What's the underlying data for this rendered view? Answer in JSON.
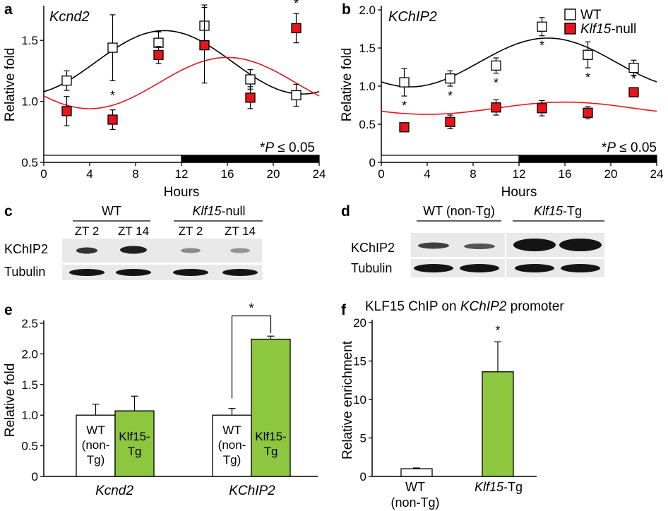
{
  "colors": {
    "wt_fill": "#ffffff",
    "null_fill": "#e8141c",
    "wt_curve": "#000000",
    "null_curve": "#e8141c",
    "tg_bar": "#8dc63f",
    "blot_band": "#141414"
  },
  "panel_a": {
    "label": "a",
    "gene": "Kcnd2",
    "ylabel": "Relative fold",
    "xlabel": "Hours",
    "pvalue_text": "*P ≤ 0.05",
    "pvalue_prefix": "*",
    "pvalue_italic": "P",
    "pvalue_rest": " ≤ 0.05",
    "star": "*"
  },
  "panel_b": {
    "label": "b",
    "gene": "KChIP2",
    "ylabel": "Relative fold",
    "xlabel": "Hours",
    "legend_wt": "WT",
    "legend_null_italic": "Klf15",
    "legend_null_rest": "-null",
    "pvalue_prefix": "*",
    "pvalue_italic": "P",
    "pvalue_rest": " ≤ 0.05",
    "star": "*"
  },
  "panel_c": {
    "label": "c",
    "group_wt": "WT",
    "group_null_italic": "Klf15",
    "group_null_rest": "-null",
    "lanes": [
      "ZT 2",
      "ZT 14",
      "ZT 2",
      "ZT 14"
    ],
    "row1": "KChIP2",
    "row2": "Tubulin"
  },
  "panel_d": {
    "label": "d",
    "group_wt": "WT (non-Tg)",
    "group_tg_italic": "Klf15",
    "group_tg_rest": "-Tg",
    "row1": "KChIP2",
    "row2": "Tubulin"
  },
  "panel_e": {
    "label": "e",
    "ylabel": "Relative fold",
    "group1": "Kcnd2",
    "group2": "KChIP2",
    "bar_wt_lines": [
      "WT",
      "(non-",
      "Tg)"
    ],
    "bar_tg_lines": [
      "Klf15-",
      "Tg"
    ],
    "star": "*"
  },
  "panel_f": {
    "label": "f",
    "title_prefix": "KLF15 ChIP on ",
    "title_italic": "KChIP2",
    "title_suffix": " promoter",
    "ylabel": "Relative enrichment",
    "cat1_line1": "WT",
    "cat1_line2": "(non-Tg)",
    "cat2_italic": "Klf15",
    "cat2_rest": "-Tg",
    "star": "*"
  },
  "chart_data": [
    {
      "id": "a",
      "type": "scatter",
      "title": "Kcnd2",
      "xlabel": "Hours",
      "ylabel": "Relative fold",
      "xlim": [
        0,
        24
      ],
      "ylim": [
        0.5,
        1.75
      ],
      "xticks": [
        0,
        4,
        8,
        12,
        16,
        20,
        24
      ],
      "yticks": [
        0.5,
        1.0,
        1.5
      ],
      "ytick_labels": [
        "0.5",
        "1.0",
        "1.5"
      ],
      "grid": false,
      "light_dark_bar": {
        "light": [
          0,
          12
        ],
        "dark": [
          12,
          24
        ]
      },
      "x": [
        2,
        6,
        10,
        14,
        18,
        22
      ],
      "series": [
        {
          "name": "WT",
          "values": [
            1.17,
            1.44,
            1.48,
            1.62,
            1.18,
            1.05
          ],
          "errors": [
            0.08,
            0.27,
            0.09,
            0.17,
            0.08,
            0.09
          ],
          "fit": {
            "mean": 1.32,
            "amplitude": 0.26,
            "peak_hour": 10.5
          }
        },
        {
          "name": "Klf15-null",
          "values": [
            0.92,
            0.85,
            1.38,
            1.46,
            1.03,
            1.6
          ],
          "errors": [
            0.12,
            0.08,
            0.07,
            0.31,
            0.09,
            0.12
          ],
          "fit": {
            "mean": 1.15,
            "amplitude": 0.21,
            "peak_hour": 16
          }
        }
      ],
      "significance": [
        {
          "x": 6,
          "text": "*"
        },
        {
          "x": 22,
          "text": "*"
        }
      ],
      "annotation": "*P ≤ 0.05"
    },
    {
      "id": "b",
      "type": "scatter",
      "title": "KChIP2",
      "xlabel": "Hours",
      "ylabel": "Relative fold",
      "xlim": [
        0,
        24
      ],
      "ylim": [
        0,
        2.0
      ],
      "xticks": [
        0,
        4,
        8,
        12,
        16,
        20,
        24
      ],
      "yticks": [
        0,
        0.5,
        1.0,
        1.5,
        2.0
      ],
      "ytick_labels": [
        "0",
        "0.5",
        "1.0",
        "1.5",
        "2.0"
      ],
      "grid": false,
      "legend_position": "top-right",
      "light_dark_bar": {
        "light": [
          0,
          12
        ],
        "dark": [
          12,
          24
        ]
      },
      "x": [
        2,
        6,
        10,
        14,
        18,
        22
      ],
      "series": [
        {
          "name": "WT",
          "values": [
            1.05,
            1.1,
            1.27,
            1.78,
            1.41,
            1.24
          ],
          "errors": [
            0.18,
            0.1,
            0.1,
            0.12,
            0.17,
            0.1
          ],
          "fit": {
            "mean": 1.31,
            "amplitude": 0.32,
            "peak_hour": 14.5
          }
        },
        {
          "name": "Klf15-null",
          "values": [
            0.46,
            0.53,
            0.72,
            0.71,
            0.65,
            0.92
          ],
          "errors": [
            0.05,
            0.09,
            0.1,
            0.1,
            0.08,
            0.06
          ],
          "fit": {
            "mean": 0.71,
            "amplitude": 0.08,
            "peak_hour": 16
          }
        }
      ],
      "significance": [
        {
          "x": 2,
          "text": "*"
        },
        {
          "x": 6,
          "text": "*"
        },
        {
          "x": 10,
          "text": "*"
        },
        {
          "x": 14,
          "text": "*"
        },
        {
          "x": 18,
          "text": "*"
        },
        {
          "x": 22,
          "text": "*"
        }
      ],
      "annotation": "*P ≤ 0.05"
    },
    {
      "id": "e",
      "type": "bar",
      "ylabel": "Relative fold",
      "ylim": [
        0,
        2.5
      ],
      "yticks": [
        0,
        0.5,
        1.0,
        1.5,
        2.0,
        2.5
      ],
      "ytick_labels": [
        "0",
        "0.5",
        "1.0",
        "1.5",
        "2.0",
        "2.5"
      ],
      "categories": [
        "Kcnd2",
        "KChIP2"
      ],
      "series": [
        {
          "name": "WT (non-Tg)",
          "values": [
            1.0,
            1.0
          ],
          "errors": [
            0.18,
            0.11
          ]
        },
        {
          "name": "Klf15-Tg",
          "values": [
            1.07,
            2.24
          ],
          "errors": [
            0.24,
            0.05
          ]
        }
      ],
      "significance": [
        {
          "category": "KChIP2",
          "text": "*"
        }
      ]
    },
    {
      "id": "f",
      "type": "bar",
      "title": "KLF15 ChIP on KChIP2 promoter",
      "ylabel": "Relative enrichment",
      "ylim": [
        0,
        20
      ],
      "yticks": [
        0,
        5,
        10,
        15,
        20
      ],
      "ytick_labels": [
        "0",
        "5",
        "10",
        "15",
        "20"
      ],
      "categories": [
        "WT (non-Tg)",
        "Klf15-Tg"
      ],
      "values": [
        1.0,
        13.6
      ],
      "errors": [
        0.1,
        3.9
      ],
      "significance": [
        {
          "category": "Klf15-Tg",
          "text": "*"
        }
      ]
    }
  ]
}
